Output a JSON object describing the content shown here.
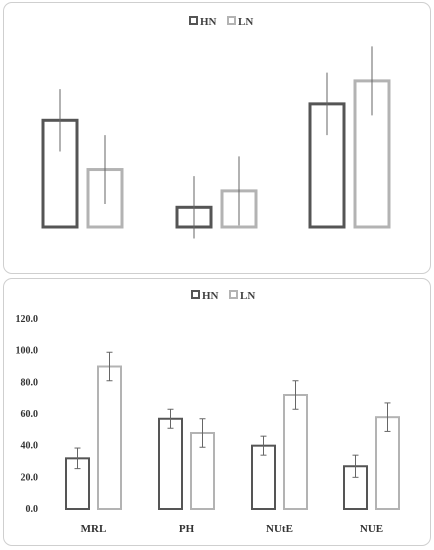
{
  "colors": {
    "HN": "#555555",
    "LN": "#b3b3b3",
    "error": "#666666"
  },
  "chart_data": [
    {
      "type": "bar",
      "categories": [
        "",
        "",
        ""
      ],
      "series": [
        {
          "name": "HN",
          "values": [
            65,
            12,
            75
          ],
          "errors": [
            19,
            19,
            19
          ]
        },
        {
          "name": "LN",
          "values": [
            35,
            22,
            89
          ],
          "errors": [
            21,
            21,
            21
          ]
        }
      ],
      "legend": "top-center",
      "ylim": [
        0,
        120
      ],
      "grid": false
    },
    {
      "type": "bar",
      "categories": [
        "MRL",
        "PH",
        "NUtE",
        "NUE"
      ],
      "yticks": [
        "0.0",
        "20.0",
        "40.0",
        "60.0",
        "80.0",
        "100.0",
        "120.0"
      ],
      "series": [
        {
          "name": "HN",
          "values": [
            32,
            57,
            40,
            27
          ],
          "errors": [
            6.5,
            6,
            6,
            7
          ]
        },
        {
          "name": "LN",
          "values": [
            90,
            48,
            72,
            58
          ],
          "errors": [
            9,
            9,
            9,
            9
          ]
        }
      ],
      "legend": "top-center",
      "ylim": [
        0,
        120
      ],
      "grid": false
    }
  ]
}
